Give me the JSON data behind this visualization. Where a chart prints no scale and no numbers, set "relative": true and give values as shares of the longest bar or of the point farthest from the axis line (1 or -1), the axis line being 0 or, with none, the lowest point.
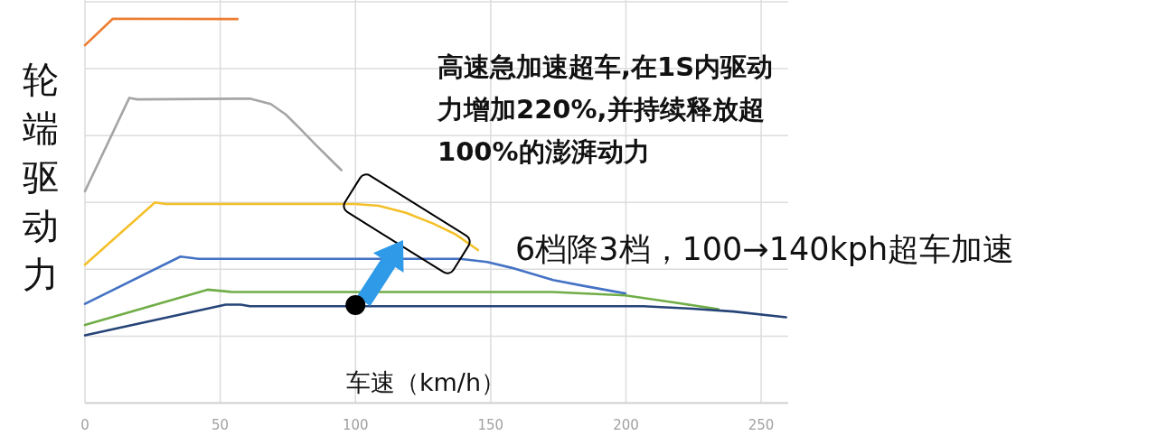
{
  "chart_data": {
    "type": "line",
    "relative": true,
    "xlabel": "车速（km/h）",
    "ylabel": "轮端驱动力",
    "annotations": [
      "高速急加速超车,在1S内驱动力增加220%,并持续释放超100%的澎湃动力",
      "6档降3档，100→140kph超车加速"
    ],
    "xlim": [
      0,
      260
    ],
    "xticks": [
      0,
      50,
      100,
      150,
      200,
      250
    ],
    "grid": true,
    "series": [
      {
        "color": "#ed7d31",
        "x": [
          0,
          10.3,
          56.4
        ],
        "values": [
          0.931,
          1,
          0.999
        ]
      },
      {
        "color": "#a5a5a5",
        "x": [
          0,
          16.4,
          19.4,
          61,
          68.7,
          74.2,
          79.8,
          85.3,
          90.9,
          94.8
        ],
        "values": [
          0.551,
          0.794,
          0.79,
          0.792,
          0.778,
          0.751,
          0.712,
          0.672,
          0.633,
          0.606
        ]
      },
      {
        "color": "#f4c02a",
        "x": [
          0,
          25.9,
          29.8,
          99.8,
          108.7,
          118.7,
          128.7,
          137,
          145.3
        ],
        "values": [
          0.36,
          0.522,
          0.518,
          0.518,
          0.513,
          0.495,
          0.467,
          0.439,
          0.398
        ]
      },
      {
        "color": "#4472c4",
        "x": [
          0,
          35.3,
          42,
          138.7,
          148.7,
          157.6,
          173.1,
          184.2,
          199.8
        ],
        "values": [
          0.258,
          0.381,
          0.375,
          0.375,
          0.367,
          0.352,
          0.32,
          0.305,
          0.285
        ]
      },
      {
        "color": "#70ad47",
        "x": [
          0,
          45.3,
          54.2,
          173,
          199.8,
          217.6,
          234.2
        ],
        "values": [
          0.203,
          0.295,
          0.289,
          0.289,
          0.28,
          0.262,
          0.244
        ]
      },
      {
        "color": "#264478",
        "x": [
          0,
          52,
          57.6,
          61,
          206.4,
          223,
          239.8,
          259.2
        ],
        "values": [
          0.176,
          0.256,
          0.256,
          0.252,
          0.252,
          0.246,
          0.238,
          0.223
        ]
      },
      {
        "type": "scatter",
        "color": "#000000",
        "marker": "circle",
        "x": [
          100
        ],
        "values": [
          0.255
        ]
      }
    ]
  }
}
